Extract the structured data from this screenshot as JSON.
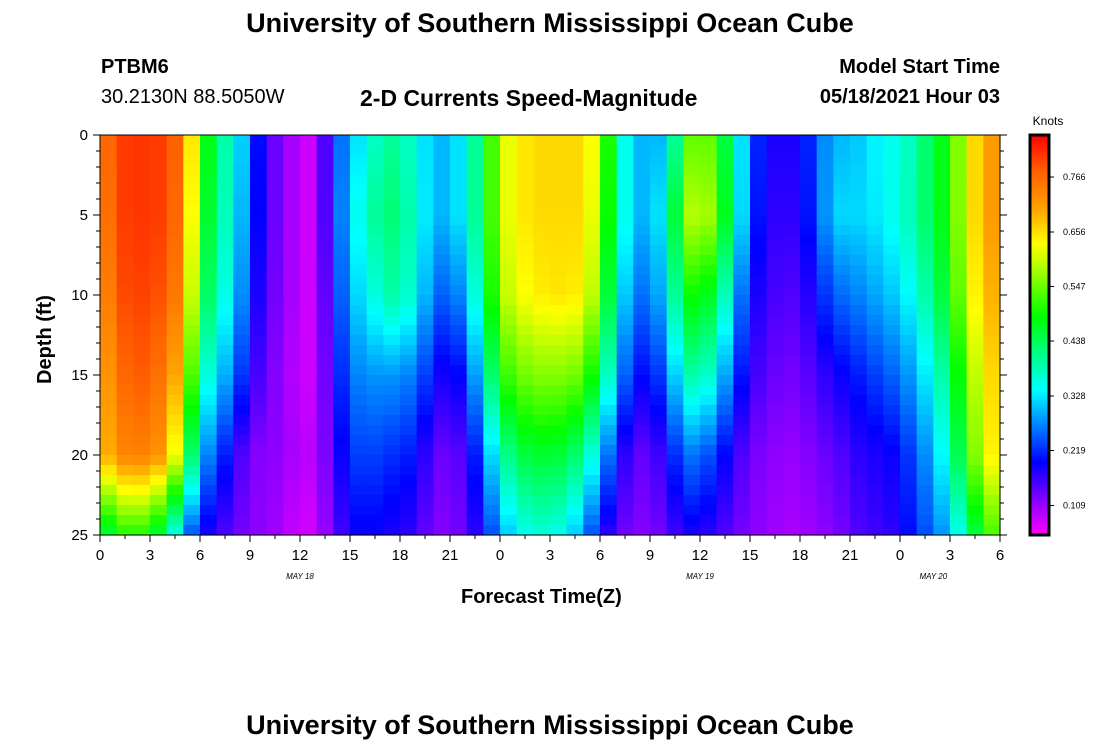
{
  "page": {
    "title_top": "University of Southern Mississippi Ocean Cube",
    "title_bottom": "University of Southern Mississippi Ocean Cube",
    "station": "PTBM6",
    "coords": "30.2130N  88.5050W",
    "model_label": "Model Start Time",
    "model_time": "05/18/2021 Hour 03"
  },
  "chart_data": {
    "type": "heatmap",
    "title": "2-D Currents Speed-Magnitude",
    "xlabel": "Forecast Time(Z)",
    "ylabel": "Depth (ft)",
    "x_tick_labels": [
      "0",
      "3",
      "6",
      "9",
      "12",
      "15",
      "18",
      "21",
      "0",
      "3",
      "6",
      "9",
      "12",
      "15",
      "18",
      "21",
      "0",
      "3",
      "6"
    ],
    "x_range_hours": [
      0,
      54
    ],
    "date_labels": [
      {
        "text": "MAY 18",
        "hour": 12
      },
      {
        "text": "MAY 19",
        "hour": 36
      },
      {
        "text": "MAY 20",
        "hour": 50
      }
    ],
    "y_ticks": [
      0,
      5,
      10,
      15,
      20,
      25
    ],
    "ylim": [
      0,
      25
    ],
    "y_inverted": true,
    "colorbar": {
      "unit": "Knots",
      "ticks": [
        0.109,
        0.219,
        0.328,
        0.438,
        0.547,
        0.656,
        0.766
      ],
      "range": [
        0.05,
        0.85
      ]
    },
    "colors": [
      "#ff00ff",
      "#8000ff",
      "#0000ff",
      "#0080ff",
      "#00ffff",
      "#00ff80",
      "#00ff00",
      "#80ff00",
      "#ffff00",
      "#ffa000",
      "#ff6000",
      "#ff0000"
    ],
    "hours": [
      0,
      1,
      2,
      3,
      4,
      5,
      6,
      7,
      8,
      9,
      10,
      11,
      12,
      13,
      14,
      15,
      16,
      17,
      18,
      19,
      20,
      21,
      22,
      23,
      24,
      25,
      26,
      27,
      28,
      29,
      30,
      31,
      32,
      33,
      34,
      35,
      36,
      37,
      38,
      39,
      40,
      41,
      42,
      43,
      44,
      45,
      46,
      47,
      48,
      49,
      50,
      51,
      52,
      53,
      54
    ],
    "depths": [
      0,
      5,
      10,
      15,
      20,
      25
    ],
    "values": [
      [
        0.74,
        0.8,
        0.81,
        0.81,
        0.8,
        0.75,
        0.55,
        0.4,
        0.38,
        0.25,
        0.15,
        0.12,
        0.08,
        0.08,
        0.22,
        0.3,
        0.35,
        0.4,
        0.4,
        0.35,
        0.3,
        0.3,
        0.35,
        0.45,
        0.6,
        0.64,
        0.66,
        0.66,
        0.66,
        0.66,
        0.6,
        0.4,
        0.3,
        0.3,
        0.3,
        0.5,
        0.58,
        0.5,
        0.4,
        0.25,
        0.18,
        0.18,
        0.18,
        0.25,
        0.3,
        0.3,
        0.32,
        0.35,
        0.35,
        0.4,
        0.45,
        0.5,
        0.62,
        0.7,
        0.72
      ],
      [
        0.72,
        0.8,
        0.81,
        0.81,
        0.8,
        0.74,
        0.52,
        0.4,
        0.36,
        0.24,
        0.15,
        0.12,
        0.08,
        0.08,
        0.22,
        0.32,
        0.38,
        0.42,
        0.42,
        0.36,
        0.3,
        0.3,
        0.35,
        0.45,
        0.6,
        0.64,
        0.66,
        0.66,
        0.66,
        0.66,
        0.58,
        0.4,
        0.3,
        0.3,
        0.35,
        0.56,
        0.62,
        0.54,
        0.4,
        0.24,
        0.17,
        0.17,
        0.17,
        0.24,
        0.32,
        0.32,
        0.32,
        0.34,
        0.36,
        0.4,
        0.45,
        0.5,
        0.62,
        0.7,
        0.72
      ],
      [
        0.7,
        0.79,
        0.8,
        0.8,
        0.78,
        0.72,
        0.48,
        0.38,
        0.33,
        0.22,
        0.14,
        0.12,
        0.08,
        0.08,
        0.2,
        0.3,
        0.34,
        0.38,
        0.4,
        0.34,
        0.26,
        0.24,
        0.3,
        0.42,
        0.58,
        0.62,
        0.64,
        0.65,
        0.65,
        0.64,
        0.55,
        0.36,
        0.26,
        0.26,
        0.32,
        0.48,
        0.5,
        0.44,
        0.32,
        0.2,
        0.16,
        0.15,
        0.15,
        0.2,
        0.25,
        0.26,
        0.28,
        0.3,
        0.32,
        0.36,
        0.42,
        0.48,
        0.6,
        0.68,
        0.7
      ],
      [
        0.68,
        0.76,
        0.78,
        0.78,
        0.74,
        0.66,
        0.4,
        0.32,
        0.27,
        0.18,
        0.13,
        0.11,
        0.08,
        0.08,
        0.18,
        0.26,
        0.28,
        0.28,
        0.28,
        0.26,
        0.2,
        0.17,
        0.22,
        0.35,
        0.5,
        0.54,
        0.56,
        0.56,
        0.56,
        0.54,
        0.45,
        0.3,
        0.2,
        0.2,
        0.25,
        0.38,
        0.4,
        0.34,
        0.24,
        0.17,
        0.14,
        0.13,
        0.13,
        0.16,
        0.18,
        0.2,
        0.22,
        0.24,
        0.26,
        0.3,
        0.36,
        0.42,
        0.55,
        0.64,
        0.68
      ],
      [
        0.66,
        0.73,
        0.74,
        0.74,
        0.7,
        0.55,
        0.3,
        0.24,
        0.18,
        0.12,
        0.12,
        0.11,
        0.09,
        0.09,
        0.16,
        0.22,
        0.24,
        0.22,
        0.22,
        0.2,
        0.14,
        0.13,
        0.16,
        0.26,
        0.38,
        0.44,
        0.46,
        0.46,
        0.45,
        0.4,
        0.32,
        0.2,
        0.14,
        0.14,
        0.18,
        0.26,
        0.26,
        0.22,
        0.17,
        0.13,
        0.12,
        0.11,
        0.11,
        0.13,
        0.14,
        0.16,
        0.18,
        0.18,
        0.2,
        0.25,
        0.3,
        0.38,
        0.5,
        0.62,
        0.66
      ],
      [
        0.42,
        0.48,
        0.52,
        0.48,
        0.42,
        0.28,
        0.2,
        0.16,
        0.14,
        0.12,
        0.11,
        0.1,
        0.07,
        0.08,
        0.14,
        0.18,
        0.2,
        0.18,
        0.18,
        0.16,
        0.12,
        0.12,
        0.14,
        0.2,
        0.28,
        0.34,
        0.36,
        0.36,
        0.34,
        0.28,
        0.2,
        0.14,
        0.12,
        0.12,
        0.14,
        0.18,
        0.18,
        0.16,
        0.14,
        0.12,
        0.11,
        0.1,
        0.1,
        0.11,
        0.12,
        0.14,
        0.16,
        0.16,
        0.18,
        0.22,
        0.26,
        0.3,
        0.4,
        0.5,
        0.55
      ]
    ]
  }
}
